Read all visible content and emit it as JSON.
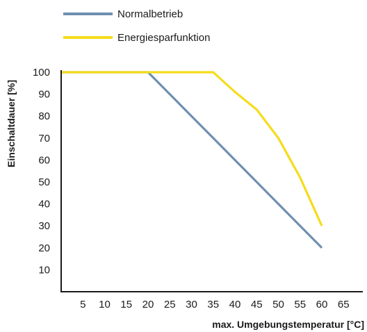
{
  "chart_data": {
    "type": "line",
    "title": "",
    "xlabel": "max. Umgebungstemperatur [°C]",
    "ylabel": "Einschaltdauer [%]",
    "xlim": [
      0,
      70
    ],
    "ylim": [
      0,
      100
    ],
    "xticks": [
      5,
      10,
      15,
      20,
      25,
      30,
      35,
      40,
      45,
      50,
      55,
      60,
      65
    ],
    "yticks": [
      10,
      20,
      30,
      40,
      50,
      60,
      70,
      80,
      90,
      100
    ],
    "grid": false,
    "legend_position": "top-left",
    "series": [
      {
        "name": "Normalbetrieb",
        "color": "#6f8fb0",
        "x": [
          0,
          20,
          25,
          30,
          35,
          40,
          45,
          50,
          55,
          60
        ],
        "y": [
          100,
          100,
          90,
          80,
          70,
          60,
          50,
          40,
          30,
          20
        ]
      },
      {
        "name": "Energiesparfunktion",
        "color": "#f5dc1c",
        "x": [
          0,
          35,
          40,
          45,
          50,
          55,
          60
        ],
        "y": [
          100,
          100,
          91,
          83,
          70,
          52,
          30
        ]
      }
    ]
  }
}
